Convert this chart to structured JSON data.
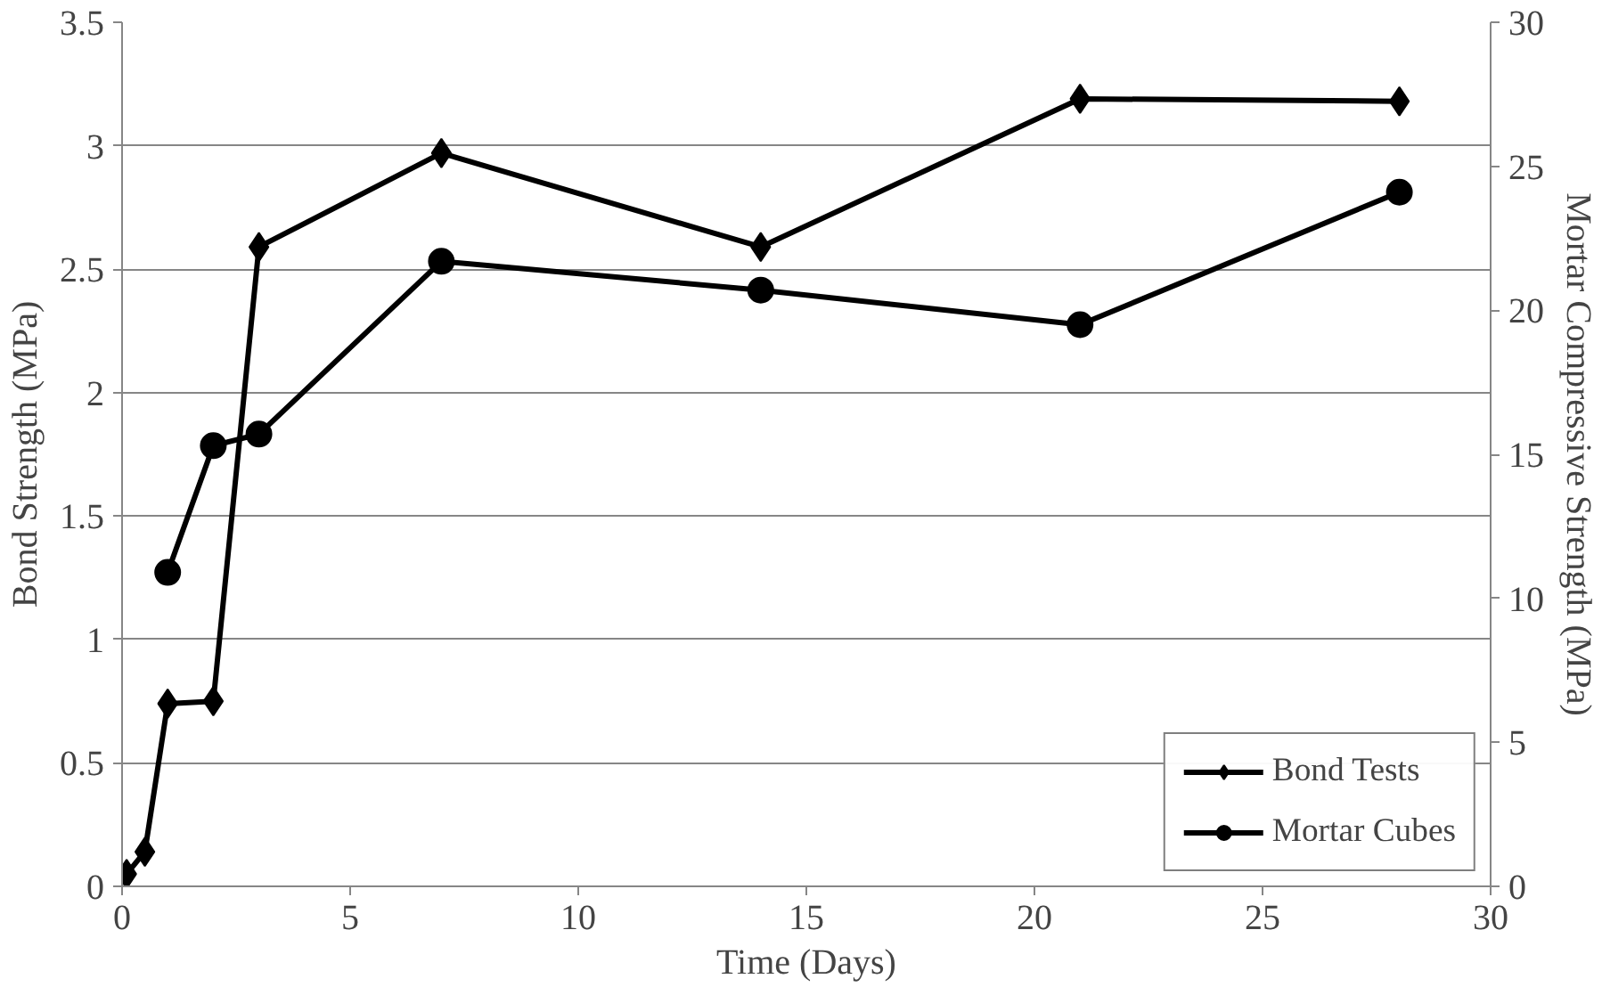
{
  "chart_data": {
    "type": "line",
    "xlabel": "Time (Days)",
    "ylabel": "Bond Strength (MPa)",
    "y2label": "Mortar Compressive Strength (MPa)",
    "series": [
      {
        "name": "Bond Tests",
        "color": "#000000",
        "marker": "diamond",
        "x": [
          0.1,
          0.5,
          1,
          2,
          3,
          7,
          14,
          21,
          28
        ],
        "values": [
          0.05,
          0.14,
          0.74,
          0.75,
          2.59,
          2.97,
          2.59,
          3.19,
          3.18
        ]
      },
      {
        "name": "Mortar Cubes",
        "color": "#000000",
        "marker": "circle",
        "axis": "y2",
        "x": [
          1,
          2,
          3,
          7,
          14,
          21,
          28
        ],
        "values": [
          10.9,
          15.3,
          15.7,
          21.7,
          20.7,
          19.5,
          24.1
        ]
      }
    ],
    "xlim": [
      0,
      30
    ],
    "xticks": [
      0,
      5,
      10,
      15,
      20,
      25,
      30
    ],
    "ylim": [
      0,
      3.5
    ],
    "yticks": [
      0,
      0.5,
      1,
      1.5,
      2,
      2.5,
      3,
      3.5
    ],
    "y2lim": [
      0,
      30
    ],
    "y2ticks": [
      0,
      5,
      10,
      15,
      20,
      25,
      30
    ],
    "grid": "y",
    "legend": "bottom right",
    "line_style": "solid"
  }
}
